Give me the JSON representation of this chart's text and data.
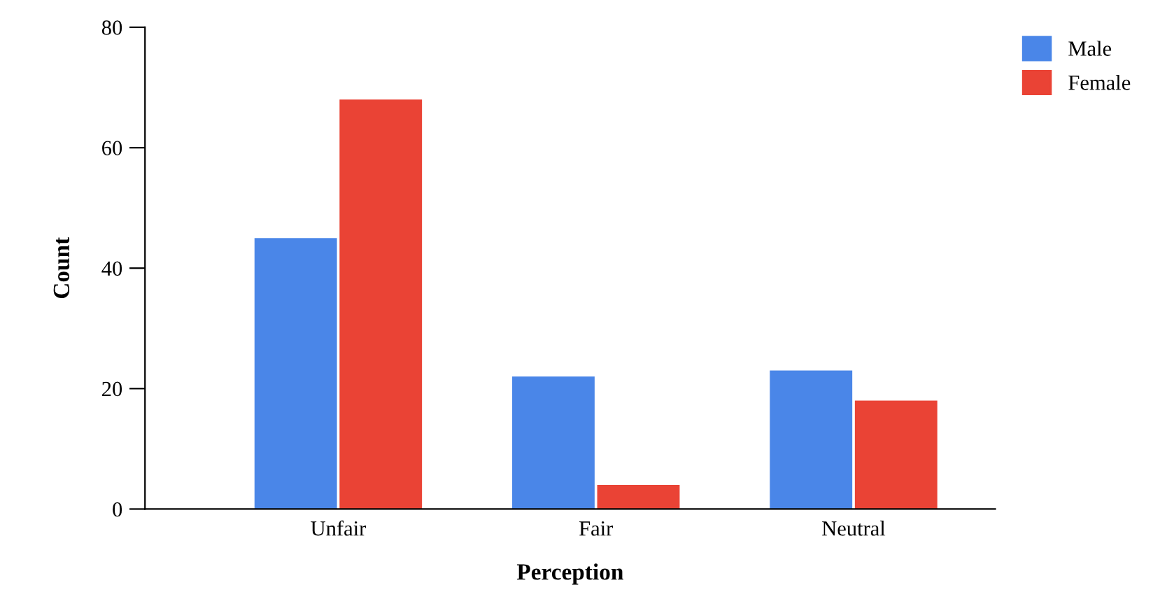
{
  "chart_data": {
    "type": "bar",
    "xlabel": "Perception",
    "ylabel": "Count",
    "categories": [
      "Unfair",
      "Fair",
      "Neutral"
    ],
    "series": [
      {
        "name": "Male",
        "color": "#4a86e8",
        "values": [
          45,
          22,
          23
        ]
      },
      {
        "name": "Female",
        "color": "#ea4335",
        "values": [
          68,
          4,
          18
        ]
      }
    ],
    "ylim": [
      0,
      80
    ],
    "yticks": [
      0,
      20,
      40,
      60,
      80
    ],
    "grid": false,
    "legend": "top right"
  }
}
